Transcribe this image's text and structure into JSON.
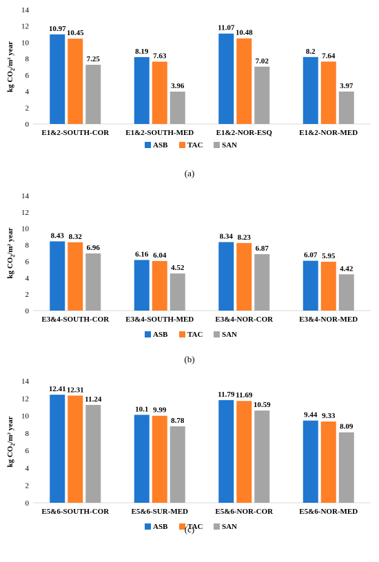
{
  "colors": {
    "ASB": "#1f77d0",
    "TAC": "#ff7f27",
    "SAN": "#a5a5a5"
  },
  "chart_data": [
    {
      "type": "bar",
      "panel_label": "(a)",
      "ylabel_main": "kg CO",
      "ylabel_sub": "2",
      "ylabel_tail": "/m² year",
      "ylim": [
        0,
        14
      ],
      "yticks": [
        "0",
        "2",
        "4",
        "6",
        "8",
        "10",
        "12",
        "14"
      ],
      "categories": [
        "E1&2-SOUTH-COR",
        "E1&2-SOUTH-MED",
        "E1&2-NOR-ESQ",
        "E1&2-NOR-MED"
      ],
      "series": [
        {
          "name": "ASB",
          "values": [
            10.97,
            8.19,
            11.07,
            8.2
          ],
          "labels": [
            "10.97",
            "8.19",
            "11.07",
            "8.2"
          ]
        },
        {
          "name": "TAC",
          "values": [
            10.45,
            7.63,
            10.48,
            7.64
          ],
          "labels": [
            "10.45",
            "7.63",
            "10.48",
            "7.64"
          ]
        },
        {
          "name": "SAN",
          "values": [
            7.25,
            3.96,
            7.02,
            3.97
          ],
          "labels": [
            "7.25",
            "3.96",
            "7.02",
            "3.97"
          ]
        }
      ],
      "legend": "bottom"
    },
    {
      "type": "bar",
      "panel_label": "(b)",
      "ylabel_main": "kg CO",
      "ylabel_sub": "2",
      "ylabel_tail": "/m² year",
      "ylim": [
        0,
        14
      ],
      "yticks": [
        "0",
        "2",
        "4",
        "6",
        "8",
        "10",
        "12",
        "14"
      ],
      "categories": [
        "E3&4-SOUTH-COR",
        "E3&4-SOUTH-MED",
        "E3&4-NOR-COR",
        "E3&4-NOR-MED"
      ],
      "series": [
        {
          "name": "ASB",
          "values": [
            8.43,
            6.16,
            8.34,
            6.07
          ],
          "labels": [
            "8.43",
            "6.16",
            "8.34",
            "6.07"
          ]
        },
        {
          "name": "TAC",
          "values": [
            8.32,
            6.04,
            8.23,
            5.95
          ],
          "labels": [
            "8.32",
            "6.04",
            "8.23",
            "5.95"
          ]
        },
        {
          "name": "SAN",
          "values": [
            6.96,
            4.52,
            6.87,
            4.42
          ],
          "labels": [
            "6.96",
            "4.52",
            "6.87",
            "4.42"
          ]
        }
      ],
      "legend": "bottom"
    },
    {
      "type": "bar",
      "panel_label": "(c)",
      "ylabel_main": "kg CO",
      "ylabel_sub": "2",
      "ylabel_tail": "/m² year",
      "ylim": [
        0,
        14
      ],
      "yticks": [
        "0",
        "2",
        "4",
        "6",
        "8",
        "10",
        "12",
        "14"
      ],
      "categories": [
        "E5&6-SOUTH-COR",
        "E5&6-SUR-MED",
        "E5&6-NOR-COR",
        "E5&6-NOR-MED"
      ],
      "series": [
        {
          "name": "ASB",
          "values": [
            12.41,
            10.1,
            11.79,
            9.44
          ],
          "labels": [
            "12.41",
            "10.1",
            "11.79",
            "9.44"
          ]
        },
        {
          "name": "TAC",
          "values": [
            12.31,
            9.99,
            11.69,
            9.33
          ],
          "labels": [
            "12.31",
            "9.99",
            "11.69",
            "9.33"
          ]
        },
        {
          "name": "SAN",
          "values": [
            11.24,
            8.78,
            10.59,
            8.09
          ],
          "labels": [
            "11.24",
            "8.78",
            "10.59",
            "8.09"
          ]
        }
      ],
      "legend": "bottom"
    }
  ]
}
